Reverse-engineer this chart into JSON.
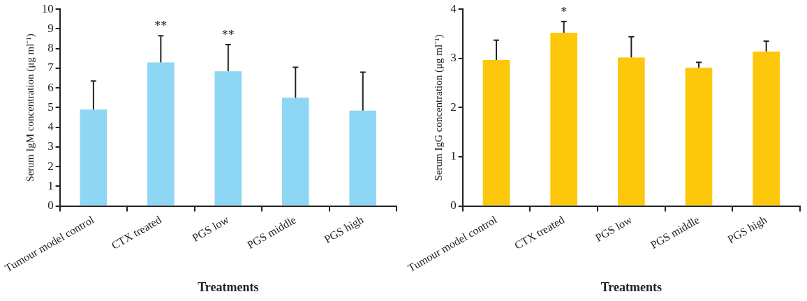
{
  "chart_data": [
    {
      "type": "bar",
      "xlabel": "Treatments",
      "ylabel": "Serum IgM concentration (μg ml⁻¹)",
      "categories": [
        "Tumour model control",
        "CTX treated",
        "PGS low",
        "PGS middle",
        "PGS high"
      ],
      "values": [
        4.9,
        7.3,
        6.85,
        5.5,
        4.85
      ],
      "color": "#8dd7f5",
      "errors": [
        [
          4.9,
          6.35
        ],
        [
          7.3,
          8.65
        ],
        [
          6.85,
          8.2
        ],
        [
          5.5,
          7.05
        ],
        [
          4.85,
          6.8
        ]
      ],
      "ylim": [
        0,
        10
      ],
      "yticks": [
        0,
        1,
        2,
        3,
        4,
        5,
        6,
        7,
        8,
        9,
        10
      ],
      "grid": false,
      "legend": false,
      "annotations": [
        "**",
        "**"
      ]
    },
    {
      "type": "bar",
      "xlabel": "Treatments",
      "ylabel": "Serum IgG concentration (μg ml⁻¹)",
      "categories": [
        "Tumour model control",
        "CTX treated",
        "PGS low",
        "PGS middle",
        "PGS high"
      ],
      "values": [
        2.97,
        3.52,
        3.02,
        2.81,
        3.14
      ],
      "color": "#fdc70c",
      "errors": [
        [
          2.97,
          3.37
        ],
        [
          3.52,
          3.75
        ],
        [
          3.02,
          3.44
        ],
        [
          2.81,
          2.92
        ],
        [
          3.14,
          3.35
        ]
      ],
      "ylim": [
        0,
        4
      ],
      "yticks": [
        0,
        1,
        2,
        3,
        4
      ],
      "grid": false,
      "legend": false,
      "annotations": [
        "*"
      ]
    }
  ]
}
